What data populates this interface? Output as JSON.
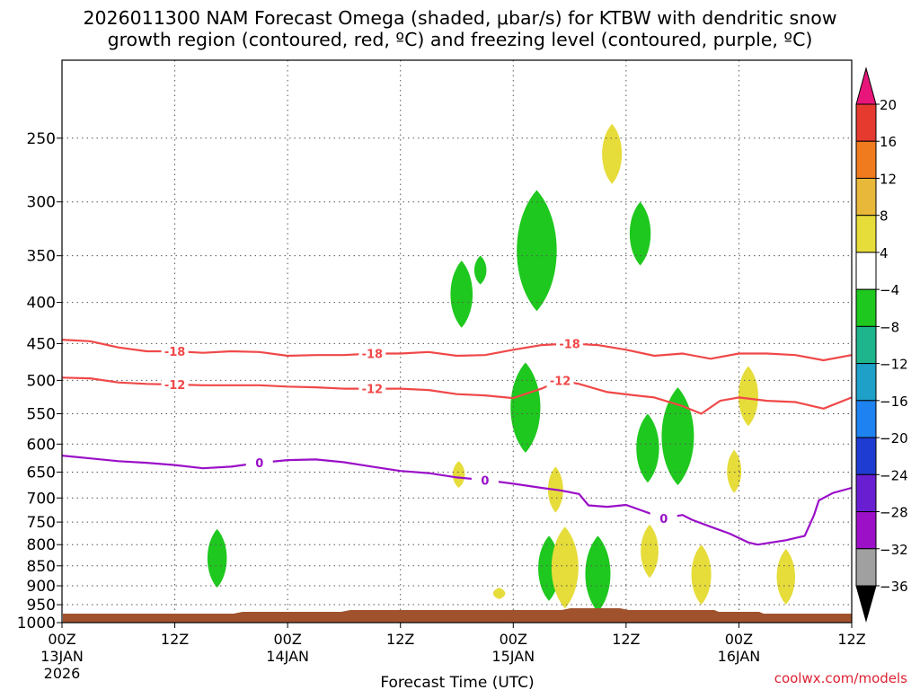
{
  "title_line1": "2026011300 NAM Forecast Omega (shaded, μbar/s) for KTBW with dendritic snow",
  "title_line2": "growth region (contoured, red, ºC) and freezing level (contoured, purple, ºC)",
  "credit": "coolwx.com/models",
  "chart_data": {
    "type": "contour",
    "xlabel": "Forecast Time (UTC)",
    "x_ticks": [
      {
        "hour": 0,
        "label": "00Z",
        "date": "13JAN",
        "year": "2026"
      },
      {
        "hour": 12,
        "label": "12Z"
      },
      {
        "hour": 24,
        "label": "00Z",
        "date": "14JAN"
      },
      {
        "hour": 36,
        "label": "12Z"
      },
      {
        "hour": 48,
        "label": "00Z",
        "date": "15JAN"
      },
      {
        "hour": 60,
        "label": "12Z"
      },
      {
        "hour": 72,
        "label": "00Z",
        "date": "16JAN"
      },
      {
        "hour": 84,
        "label": "12Z"
      }
    ],
    "xlim": [
      0,
      84
    ],
    "y_ticks": [
      250,
      300,
      350,
      400,
      450,
      500,
      550,
      600,
      650,
      700,
      750,
      800,
      850,
      900,
      950,
      1000
    ],
    "ylim": [
      1000,
      200
    ],
    "y_scale": "log",
    "grid": true,
    "colorbar": {
      "labels": [
        20,
        16,
        12,
        8,
        4,
        -4,
        -8,
        -12,
        -16,
        -20,
        -24,
        -28,
        -32,
        -36
      ],
      "colors": [
        "#e8157a",
        "#e63a2e",
        "#f07a1e",
        "#e8b83a",
        "#e6dc3a",
        "#ffffff",
        "#1ec81e",
        "#1eb48c",
        "#1ea0c8",
        "#1e82f0",
        "#1e3cd2",
        "#6a1ed2",
        "#9c10c8",
        "#a0a0a0",
        "#000000"
      ]
    },
    "contours": [
      {
        "value": -18,
        "color": "#f04848",
        "label": "-18",
        "points": [
          [
            0,
            445
          ],
          [
            3,
            447
          ],
          [
            6,
            455
          ],
          [
            9,
            460
          ],
          [
            12,
            460
          ],
          [
            15,
            462
          ],
          [
            18,
            460
          ],
          [
            21,
            461
          ],
          [
            24,
            466
          ],
          [
            27,
            465
          ],
          [
            30,
            465
          ],
          [
            33,
            463
          ],
          [
            36,
            463
          ],
          [
            39,
            461
          ],
          [
            42,
            466
          ],
          [
            45,
            465
          ],
          [
            48,
            458
          ],
          [
            51,
            452
          ],
          [
            54,
            450
          ],
          [
            57,
            452
          ],
          [
            60,
            458
          ],
          [
            63,
            466
          ],
          [
            66,
            463
          ],
          [
            69,
            470
          ],
          [
            72,
            463
          ],
          [
            75,
            463
          ],
          [
            78,
            465
          ],
          [
            81,
            472
          ],
          [
            84,
            465
          ]
        ]
      },
      {
        "value": -12,
        "color": "#f04848",
        "label": "-12",
        "points": [
          [
            0,
            496
          ],
          [
            3,
            497
          ],
          [
            6,
            503
          ],
          [
            9,
            505
          ],
          [
            12,
            506
          ],
          [
            15,
            507
          ],
          [
            18,
            507
          ],
          [
            21,
            507
          ],
          [
            24,
            509
          ],
          [
            27,
            510
          ],
          [
            30,
            512
          ],
          [
            33,
            512
          ],
          [
            36,
            512
          ],
          [
            39,
            514
          ],
          [
            42,
            520
          ],
          [
            45,
            522
          ],
          [
            48,
            526
          ],
          [
            51,
            512
          ],
          [
            53,
            500
          ],
          [
            55,
            505
          ],
          [
            58,
            517
          ],
          [
            61,
            522
          ],
          [
            63,
            525
          ],
          [
            66,
            538
          ],
          [
            68,
            550
          ],
          [
            70,
            530
          ],
          [
            72,
            525
          ],
          [
            75,
            530
          ],
          [
            78,
            532
          ],
          [
            81,
            542
          ],
          [
            84,
            525
          ]
        ]
      },
      {
        "value": 0,
        "color": "#9a10c8",
        "label": "0",
        "points": [
          [
            0,
            620
          ],
          [
            3,
            625
          ],
          [
            6,
            630
          ],
          [
            9,
            633
          ],
          [
            12,
            637
          ],
          [
            15,
            643
          ],
          [
            18,
            640
          ],
          [
            21,
            633
          ],
          [
            24,
            628
          ],
          [
            27,
            627
          ],
          [
            30,
            632
          ],
          [
            33,
            640
          ],
          [
            36,
            648
          ],
          [
            39,
            652
          ],
          [
            42,
            660
          ],
          [
            45,
            665
          ],
          [
            48,
            672
          ],
          [
            51,
            680
          ],
          [
            53,
            685
          ],
          [
            55,
            692
          ],
          [
            56,
            715
          ],
          [
            58,
            718
          ],
          [
            60,
            714
          ],
          [
            63,
            735
          ],
          [
            64,
            742
          ],
          [
            66,
            735
          ],
          [
            67,
            745
          ],
          [
            69,
            760
          ],
          [
            71,
            775
          ],
          [
            73,
            795
          ],
          [
            74,
            800
          ],
          [
            77,
            790
          ],
          [
            79,
            780
          ],
          [
            80,
            735
          ],
          [
            80.5,
            705
          ],
          [
            82,
            690
          ],
          [
            84,
            680
          ]
        ]
      }
    ],
    "omega_regions": [
      {
        "category": "-8 to -4",
        "color": "#1ec81e",
        "center_hour": 16.5,
        "pressure_range": [
          765,
          905
        ]
      },
      {
        "category": "-8 to -4",
        "color": "#1ec81e",
        "center_hour": 42.5,
        "pressure_range": [
          355,
          430
        ]
      },
      {
        "category": "-8 to -4",
        "color": "#1ec81e",
        "center_hour": 44.5,
        "pressure_range": [
          350,
          380
        ]
      },
      {
        "category": "-8 to -4",
        "color": "#1ec81e",
        "center_hour": 50.5,
        "pressure_range": [
          290,
          410
        ]
      },
      {
        "category": "-8 to -4",
        "color": "#1ec81e",
        "center_hour": 49.3,
        "pressure_range": [
          475,
          615
        ]
      },
      {
        "category": "-8 to -4",
        "color": "#1ec81e",
        "center_hour": 61.5,
        "pressure_range": [
          300,
          360
        ]
      },
      {
        "category": "-8 to -4",
        "color": "#1ec81e",
        "center_hour": 62.3,
        "pressure_range": [
          550,
          670
        ]
      },
      {
        "category": "-8 to -4",
        "color": "#1ec81e",
        "center_hour": 65.5,
        "pressure_range": [
          510,
          675
        ]
      },
      {
        "category": "-8 to -4",
        "color": "#1ec81e",
        "center_hour": 51.8,
        "pressure_range": [
          780,
          940
        ]
      },
      {
        "category": "-8 to -4",
        "color": "#1ec81e",
        "center_hour": 57,
        "pressure_range": [
          780,
          970
        ]
      },
      {
        "category": "4 to 8",
        "color": "#e6dc3a",
        "center_hour": 58.5,
        "pressure_range": [
          240,
          285
        ]
      },
      {
        "category": "4 to 8",
        "color": "#e6dc3a",
        "center_hour": 42.2,
        "pressure_range": [
          630,
          680
        ]
      },
      {
        "category": "4 to 8",
        "color": "#e6dc3a",
        "center_hour": 52.5,
        "pressure_range": [
          640,
          730
        ]
      },
      {
        "category": "4 to 8",
        "color": "#e6dc3a",
        "center_hour": 73,
        "pressure_range": [
          480,
          570
        ]
      },
      {
        "category": "4 to 8",
        "color": "#e6dc3a",
        "center_hour": 71.5,
        "pressure_range": [
          610,
          690
        ]
      },
      {
        "category": "4 to 8",
        "color": "#e6dc3a",
        "center_hour": 62.5,
        "pressure_range": [
          755,
          880
        ]
      },
      {
        "category": "4 to 8",
        "color": "#e6dc3a",
        "center_hour": 53.5,
        "pressure_range": [
          760,
          960
        ]
      },
      {
        "category": "4 to 8",
        "color": "#e6dc3a",
        "center_hour": 68,
        "pressure_range": [
          800,
          950
        ]
      },
      {
        "category": "4 to 8",
        "color": "#e6dc3a",
        "center_hour": 77,
        "pressure_range": [
          810,
          950
        ]
      },
      {
        "category": "4 to 8",
        "color": "#e6dc3a",
        "center_hour": 46.5,
        "pressure_range": [
          905,
          935
        ]
      }
    ]
  }
}
